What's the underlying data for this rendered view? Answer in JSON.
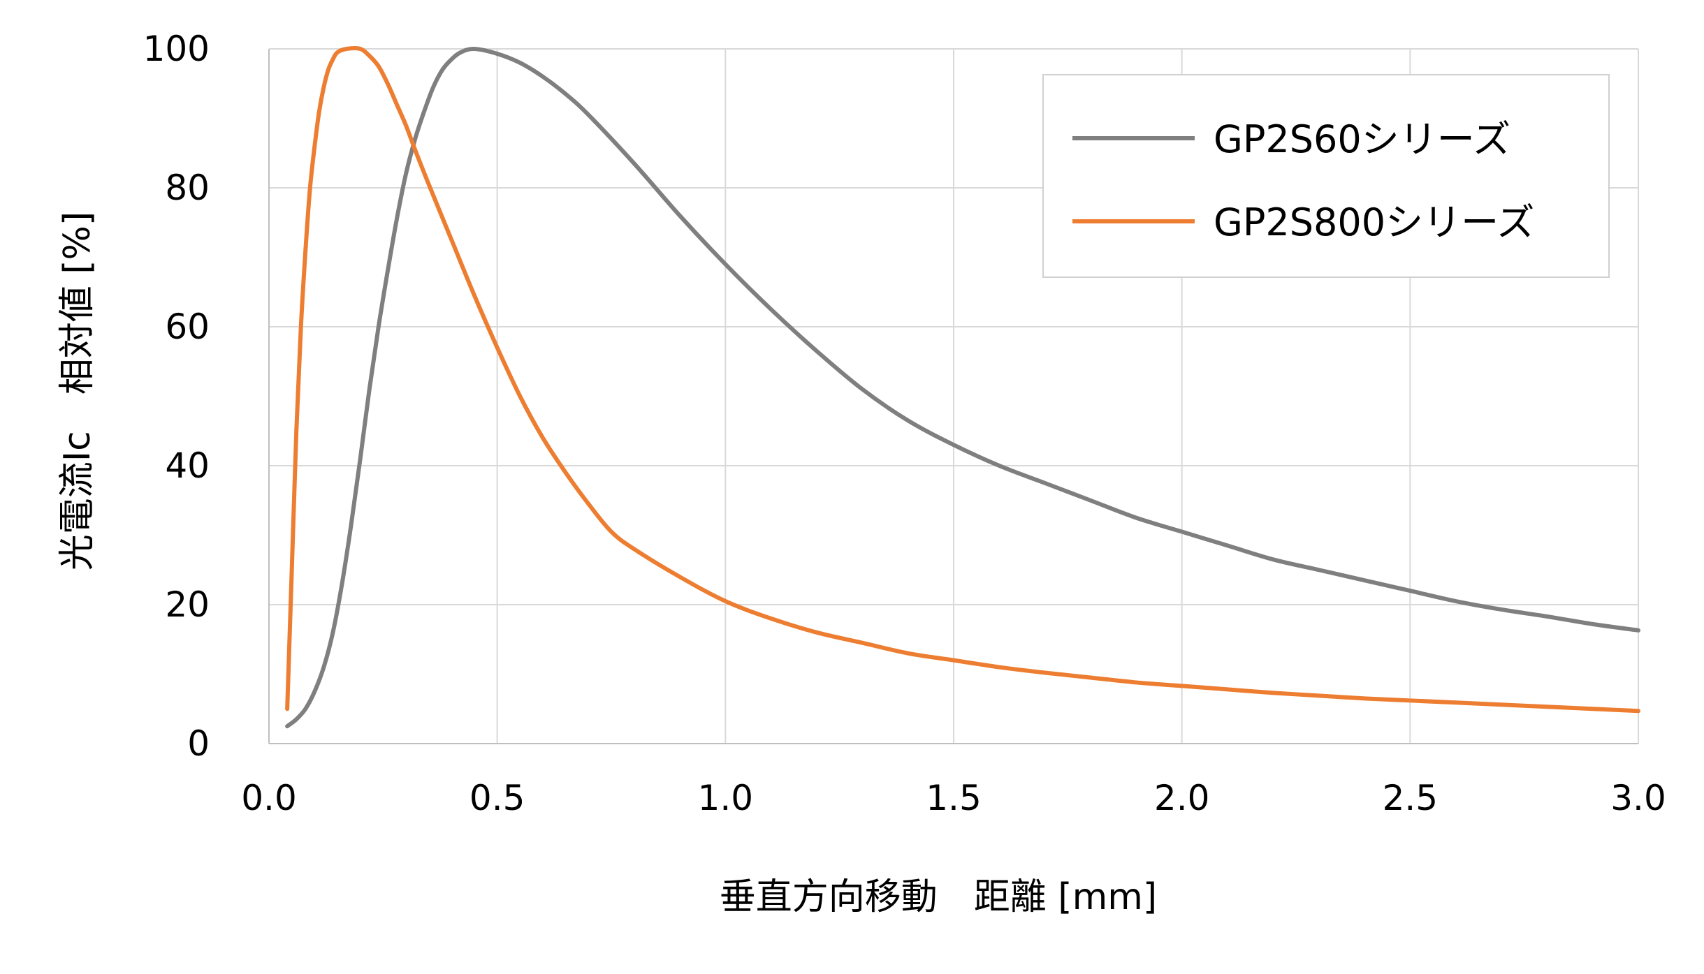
{
  "chart_data": {
    "type": "line",
    "xlabel": "垂直方向移動　距離 [mm]",
    "ylabel": "光電流Ic　相対値 [%]",
    "xlim": [
      0,
      3.0
    ],
    "ylim": [
      0,
      100
    ],
    "x_ticks": [
      "0.0",
      "0.5",
      "1.0",
      "1.5",
      "2.0",
      "2.5",
      "3.0"
    ],
    "y_ticks": [
      "0",
      "20",
      "40",
      "60",
      "80",
      "100"
    ],
    "grid": true,
    "legend_position": "top-right",
    "series": [
      {
        "name": "GP2S60シリーズ",
        "color": "#7f7f7f",
        "points": [
          [
            0.04,
            2.5
          ],
          [
            0.06,
            3.5
          ],
          [
            0.08,
            5
          ],
          [
            0.1,
            7.5
          ],
          [
            0.12,
            11
          ],
          [
            0.14,
            16
          ],
          [
            0.16,
            23
          ],
          [
            0.18,
            31.5
          ],
          [
            0.2,
            41
          ],
          [
            0.22,
            51
          ],
          [
            0.24,
            60
          ],
          [
            0.26,
            68
          ],
          [
            0.28,
            75.5
          ],
          [
            0.3,
            82
          ],
          [
            0.32,
            87
          ],
          [
            0.34,
            91
          ],
          [
            0.36,
            94.5
          ],
          [
            0.38,
            97
          ],
          [
            0.4,
            98.5
          ],
          [
            0.42,
            99.5
          ],
          [
            0.45,
            100
          ],
          [
            0.5,
            99.3
          ],
          [
            0.55,
            98
          ],
          [
            0.6,
            96
          ],
          [
            0.65,
            93.5
          ],
          [
            0.7,
            90.5
          ],
          [
            0.8,
            83.5
          ],
          [
            0.9,
            76
          ],
          [
            1.0,
            69
          ],
          [
            1.1,
            62.5
          ],
          [
            1.2,
            56.5
          ],
          [
            1.3,
            51
          ],
          [
            1.4,
            46.5
          ],
          [
            1.5,
            43
          ],
          [
            1.6,
            40
          ],
          [
            1.7,
            37.5
          ],
          [
            1.8,
            35
          ],
          [
            1.9,
            32.5
          ],
          [
            2.0,
            30.5
          ],
          [
            2.1,
            28.5
          ],
          [
            2.2,
            26.5
          ],
          [
            2.3,
            25
          ],
          [
            2.4,
            23.5
          ],
          [
            2.5,
            22
          ],
          [
            2.6,
            20.5
          ],
          [
            2.7,
            19.3
          ],
          [
            2.8,
            18.3
          ],
          [
            2.9,
            17.2
          ],
          [
            3.0,
            16.3
          ]
        ]
      },
      {
        "name": "GP2S800シリーズ",
        "color": "#ed7d31",
        "points": [
          [
            0.04,
            5
          ],
          [
            0.05,
            25
          ],
          [
            0.06,
            45
          ],
          [
            0.07,
            60
          ],
          [
            0.08,
            71
          ],
          [
            0.09,
            80
          ],
          [
            0.1,
            86
          ],
          [
            0.11,
            91
          ],
          [
            0.12,
            94.5
          ],
          [
            0.13,
            97
          ],
          [
            0.14,
            98.5
          ],
          [
            0.15,
            99.5
          ],
          [
            0.17,
            100
          ],
          [
            0.2,
            100
          ],
          [
            0.22,
            99
          ],
          [
            0.24,
            97.5
          ],
          [
            0.26,
            95
          ],
          [
            0.28,
            92
          ],
          [
            0.3,
            89
          ],
          [
            0.32,
            85.5
          ],
          [
            0.35,
            80.5
          ],
          [
            0.4,
            72.5
          ],
          [
            0.45,
            64.5
          ],
          [
            0.5,
            57
          ],
          [
            0.55,
            50
          ],
          [
            0.6,
            44
          ],
          [
            0.65,
            39
          ],
          [
            0.7,
            34.5
          ],
          [
            0.75,
            30.5
          ],
          [
            0.8,
            28
          ],
          [
            0.9,
            24
          ],
          [
            1.0,
            20.5
          ],
          [
            1.1,
            18
          ],
          [
            1.2,
            16
          ],
          [
            1.3,
            14.5
          ],
          [
            1.4,
            13
          ],
          [
            1.5,
            12
          ],
          [
            1.6,
            11
          ],
          [
            1.7,
            10.2
          ],
          [
            1.8,
            9.5
          ],
          [
            1.9,
            8.8
          ],
          [
            2.0,
            8.3
          ],
          [
            2.1,
            7.8
          ],
          [
            2.2,
            7.3
          ],
          [
            2.3,
            6.9
          ],
          [
            2.4,
            6.5
          ],
          [
            2.5,
            6.2
          ],
          [
            2.6,
            5.9
          ],
          [
            2.7,
            5.6
          ],
          [
            2.8,
            5.3
          ],
          [
            2.9,
            5.0
          ],
          [
            3.0,
            4.7
          ]
        ]
      }
    ]
  }
}
